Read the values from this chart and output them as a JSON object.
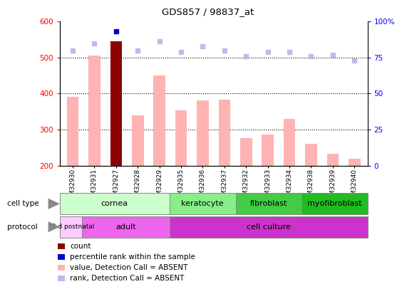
{
  "title": "GDS857 / 98837_at",
  "samples": [
    "GSM32930",
    "GSM32931",
    "GSM32927",
    "GSM32928",
    "GSM32929",
    "GSM32935",
    "GSM32936",
    "GSM32937",
    "GSM32932",
    "GSM32933",
    "GSM32934",
    "GSM32938",
    "GSM32939",
    "GSM32940"
  ],
  "bar_values": [
    390,
    505,
    545,
    340,
    450,
    353,
    382,
    383,
    277,
    287,
    330,
    260,
    232,
    220
  ],
  "rank_values": [
    80,
    85,
    93,
    80,
    86,
    79,
    83,
    80,
    76,
    79,
    79,
    76,
    77,
    73
  ],
  "bar_color_special_idx": 2,
  "bar_color_normal": "#FFB3B3",
  "bar_color_dark": "#8B0000",
  "rank_color_normal": "#BBBBEE",
  "rank_color_special": "#0000CC",
  "ylim_left": [
    200,
    600
  ],
  "ylim_right": [
    0,
    100
  ],
  "yticks_left": [
    200,
    300,
    400,
    500,
    600
  ],
  "yticks_right": [
    0,
    25,
    50,
    75,
    100
  ],
  "cell_type_groups": [
    {
      "label": "cornea",
      "start": 0,
      "end": 4,
      "color": "#CCFFCC"
    },
    {
      "label": "keratocyte",
      "start": 5,
      "end": 7,
      "color": "#88EE88"
    },
    {
      "label": "fibroblast",
      "start": 8,
      "end": 10,
      "color": "#44CC44"
    },
    {
      "label": "myofibroblast",
      "start": 11,
      "end": 13,
      "color": "#22BB22"
    }
  ],
  "protocol_groups": [
    {
      "label": "10 d postnatal",
      "start": 0,
      "end": 0,
      "color": "#FFCCFF"
    },
    {
      "label": "adult",
      "start": 1,
      "end": 4,
      "color": "#EE66EE"
    },
    {
      "label": "cell culture",
      "start": 5,
      "end": 13,
      "color": "#CC33CC"
    }
  ],
  "legend_items": [
    {
      "color": "#8B0000",
      "label": "count"
    },
    {
      "color": "#0000CC",
      "label": "percentile rank within the sample"
    },
    {
      "color": "#FFB3B3",
      "label": "value, Detection Call = ABSENT"
    },
    {
      "color": "#BBBBEE",
      "label": "rank, Detection Call = ABSENT"
    }
  ],
  "bg_color": "#FFFFFF"
}
